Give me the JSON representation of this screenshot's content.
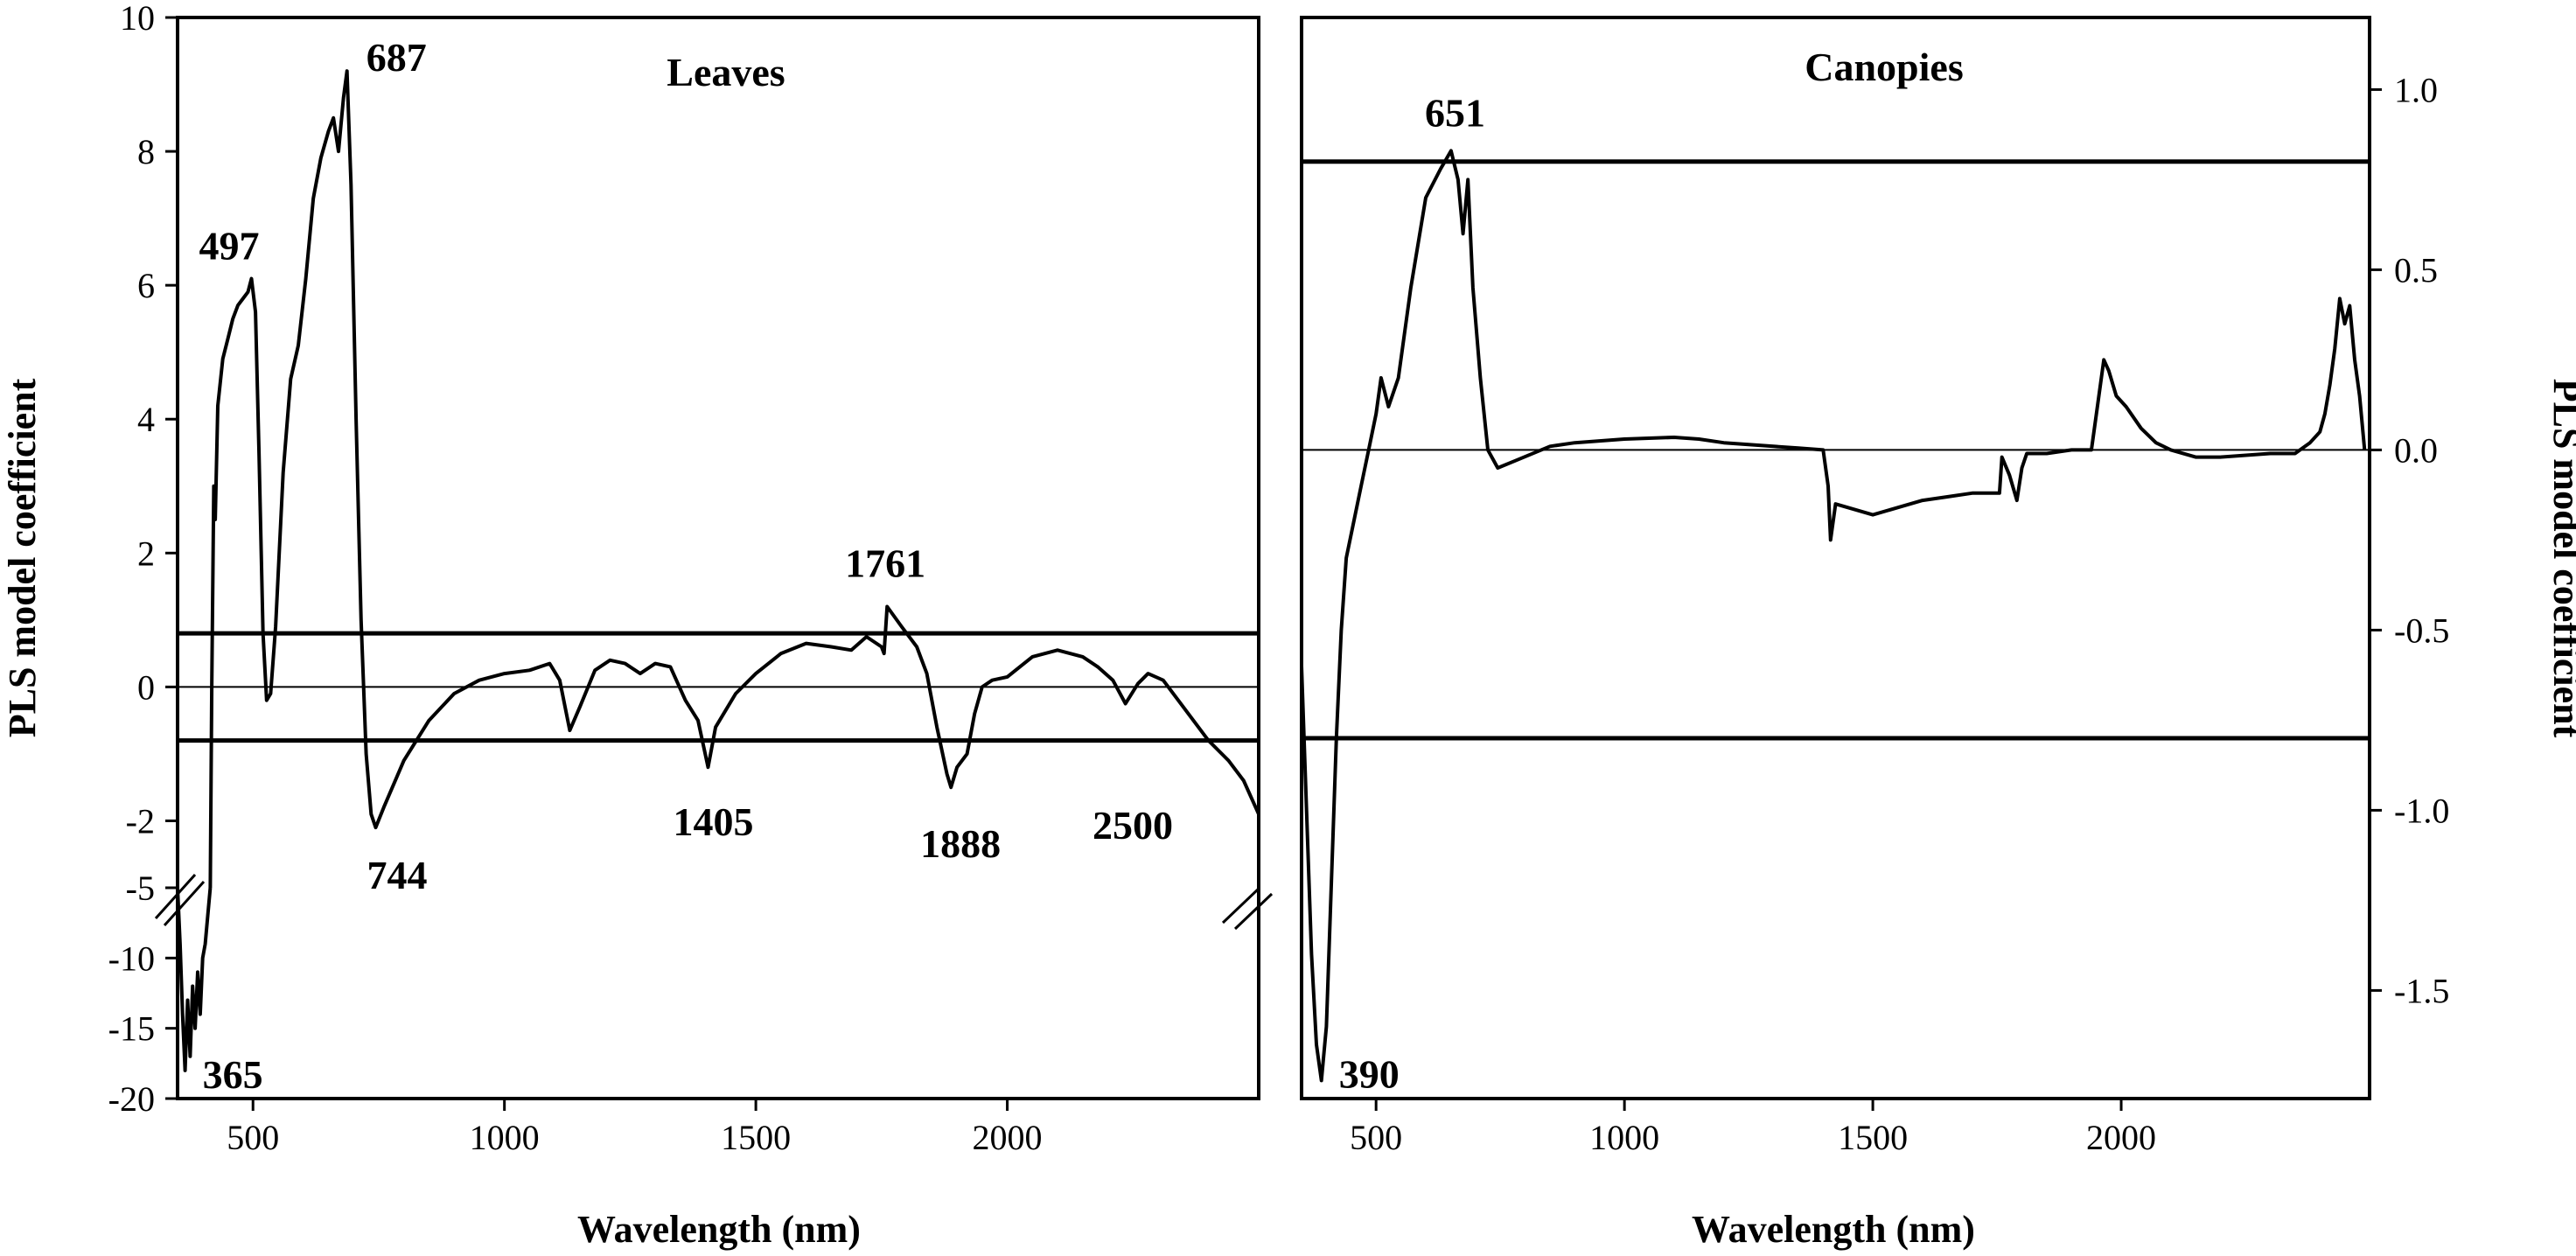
{
  "chart_data": [
    {
      "type": "line",
      "title": "Leaves",
      "xlabel": "Wavelength (nm)",
      "ylabel": "PLS model coefficient",
      "xlim": [
        350,
        2500
      ],
      "x_ticks": [
        "500",
        "1000",
        "1500",
        "2000"
      ],
      "y_ticks_upper": [
        "10",
        "8",
        "6",
        "4",
        "2",
        "0",
        "-2"
      ],
      "y_ticks_lower": [
        "-5",
        "-10",
        "-15",
        "-20"
      ],
      "ylim_upper": [
        -3,
        10
      ],
      "ylim_lower": [
        -20,
        -5
      ],
      "axis_break": "between -3 and -5",
      "threshold_lines": [
        0.8,
        -0.8
      ],
      "zero_line": 0,
      "peak_labels": [
        {
          "text": "687",
          "x": 687,
          "y": 9.2
        },
        {
          "text": "497",
          "x": 497,
          "y": 6.1
        },
        {
          "text": "1761",
          "x": 1761,
          "y": 1.2
        },
        {
          "text": "744",
          "x": 744,
          "y": -2.1
        },
        {
          "text": "1405",
          "x": 1405,
          "y": -1.2
        },
        {
          "text": "1888",
          "x": 1888,
          "y": -1.5
        },
        {
          "text": "2500",
          "x": 2500,
          "y": -1.9
        },
        {
          "text": "365",
          "x": 365,
          "y": -18
        }
      ],
      "series_lower": [
        [
          350,
          -5
        ],
        [
          355,
          -9
        ],
        [
          360,
          -14
        ],
        [
          365,
          -18
        ],
        [
          370,
          -13
        ],
        [
          375,
          -17
        ],
        [
          380,
          -12
        ],
        [
          385,
          -15
        ],
        [
          390,
          -11
        ],
        [
          395,
          -14
        ],
        [
          400,
          -10
        ],
        [
          405,
          -9
        ],
        [
          410,
          -7
        ],
        [
          415,
          -5
        ]
      ],
      "series_upper": [
        [
          415,
          -3
        ],
        [
          418,
          0
        ],
        [
          422,
          3
        ],
        [
          425,
          2.5
        ],
        [
          430,
          4.2
        ],
        [
          440,
          4.9
        ],
        [
          450,
          5.2
        ],
        [
          460,
          5.5
        ],
        [
          470,
          5.7
        ],
        [
          480,
          5.8
        ],
        [
          490,
          5.9
        ],
        [
          497,
          6.1
        ],
        [
          505,
          5.6
        ],
        [
          512,
          3.5
        ],
        [
          520,
          0.8
        ],
        [
          527,
          -0.2
        ],
        [
          535,
          -0.1
        ],
        [
          545,
          0.9
        ],
        [
          560,
          3.2
        ],
        [
          575,
          4.6
        ],
        [
          590,
          5.1
        ],
        [
          605,
          6.1
        ],
        [
          620,
          7.3
        ],
        [
          635,
          7.9
        ],
        [
          650,
          8.3
        ],
        [
          660,
          8.5
        ],
        [
          670,
          8.0
        ],
        [
          680,
          8.8
        ],
        [
          687,
          9.2
        ],
        [
          695,
          7.5
        ],
        [
          705,
          4.0
        ],
        [
          715,
          1.0
        ],
        [
          725,
          -1.0
        ],
        [
          735,
          -1.9
        ],
        [
          744,
          -2.1
        ],
        [
          760,
          -1.8
        ],
        [
          800,
          -1.1
        ],
        [
          850,
          -0.5
        ],
        [
          900,
          -0.1
        ],
        [
          950,
          0.1
        ],
        [
          1000,
          0.2
        ],
        [
          1050,
          0.25
        ],
        [
          1090,
          0.35
        ],
        [
          1110,
          0.1
        ],
        [
          1130,
          -0.65
        ],
        [
          1150,
          -0.3
        ],
        [
          1180,
          0.25
        ],
        [
          1210,
          0.4
        ],
        [
          1240,
          0.35
        ],
        [
          1270,
          0.2
        ],
        [
          1300,
          0.35
        ],
        [
          1330,
          0.3
        ],
        [
          1360,
          -0.2
        ],
        [
          1385,
          -0.5
        ],
        [
          1405,
          -1.2
        ],
        [
          1420,
          -0.6
        ],
        [
          1460,
          -0.1
        ],
        [
          1500,
          0.2
        ],
        [
          1550,
          0.5
        ],
        [
          1600,
          0.65
        ],
        [
          1650,
          0.6
        ],
        [
          1690,
          0.55
        ],
        [
          1720,
          0.75
        ],
        [
          1750,
          0.6
        ],
        [
          1755,
          0.5
        ],
        [
          1761,
          1.2
        ],
        [
          1790,
          0.9
        ],
        [
          1820,
          0.6
        ],
        [
          1840,
          0.2
        ],
        [
          1860,
          -0.6
        ],
        [
          1880,
          -1.3
        ],
        [
          1888,
          -1.5
        ],
        [
          1900,
          -1.2
        ],
        [
          1920,
          -1.0
        ],
        [
          1935,
          -0.4
        ],
        [
          1950,
          0.0
        ],
        [
          1970,
          0.1
        ],
        [
          2000,
          0.15
        ],
        [
          2050,
          0.45
        ],
        [
          2100,
          0.55
        ],
        [
          2150,
          0.45
        ],
        [
          2180,
          0.3
        ],
        [
          2210,
          0.1
        ],
        [
          2235,
          -0.25
        ],
        [
          2260,
          0.05
        ],
        [
          2280,
          0.2
        ],
        [
          2310,
          0.1
        ],
        [
          2350,
          -0.3
        ],
        [
          2400,
          -0.8
        ],
        [
          2440,
          -1.1
        ],
        [
          2470,
          -1.4
        ],
        [
          2500,
          -1.9
        ]
      ]
    },
    {
      "type": "line",
      "title": "Canopies",
      "xlabel": "Wavelength (nm)",
      "ylabel": "PLS model coefficient",
      "xlim": [
        350,
        2500
      ],
      "ylim": [
        -1.8,
        1.2
      ],
      "x_ticks": [
        "500",
        "1000",
        "1500",
        "2000"
      ],
      "y_ticks": [
        "1.0",
        "0.5",
        "0.0",
        "-0.5",
        "-1.0",
        "-1.5"
      ],
      "threshold_lines": [
        0.8,
        -0.8
      ],
      "zero_line": 0,
      "peak_labels": [
        {
          "text": "651",
          "x": 651,
          "y": 0.83
        },
        {
          "text": "390",
          "x": 390,
          "y": -1.75
        }
      ],
      "series": [
        [
          350,
          -0.6
        ],
        [
          360,
          -1.0
        ],
        [
          370,
          -1.4
        ],
        [
          380,
          -1.65
        ],
        [
          390,
          -1.75
        ],
        [
          400,
          -1.6
        ],
        [
          410,
          -1.2
        ],
        [
          420,
          -0.8
        ],
        [
          430,
          -0.5
        ],
        [
          440,
          -0.3
        ],
        [
          455,
          -0.2
        ],
        [
          470,
          -0.1
        ],
        [
          485,
          0.0
        ],
        [
          500,
          0.1
        ],
        [
          510,
          0.2
        ],
        [
          525,
          0.12
        ],
        [
          545,
          0.2
        ],
        [
          570,
          0.45
        ],
        [
          600,
          0.7
        ],
        [
          630,
          0.78
        ],
        [
          651,
          0.83
        ],
        [
          665,
          0.75
        ],
        [
          675,
          0.6
        ],
        [
          685,
          0.75
        ],
        [
          695,
          0.45
        ],
        [
          710,
          0.2
        ],
        [
          725,
          0.0
        ],
        [
          745,
          -0.05
        ],
        [
          780,
          -0.03
        ],
        [
          850,
          0.01
        ],
        [
          900,
          0.02
        ],
        [
          1000,
          0.03
        ],
        [
          1100,
          0.035
        ],
        [
          1150,
          0.03
        ],
        [
          1200,
          0.02
        ],
        [
          1250,
          0.015
        ],
        [
          1300,
          0.01
        ],
        [
          1350,
          0.005
        ],
        [
          1400,
          0.0
        ],
        [
          1410,
          -0.1
        ],
        [
          1415,
          -0.25
        ],
        [
          1425,
          -0.15
        ],
        [
          1450,
          -0.16
        ],
        [
          1500,
          -0.18
        ],
        [
          1550,
          -0.16
        ],
        [
          1600,
          -0.14
        ],
        [
          1650,
          -0.13
        ],
        [
          1700,
          -0.12
        ],
        [
          1755,
          -0.12
        ],
        [
          1760,
          -0.02
        ],
        [
          1775,
          -0.07
        ],
        [
          1790,
          -0.14
        ],
        [
          1800,
          -0.05
        ],
        [
          1810,
          -0.01
        ],
        [
          1850,
          -0.01
        ],
        [
          1900,
          0.0
        ],
        [
          1940,
          0.0
        ],
        [
          1950,
          0.1
        ],
        [
          1965,
          0.25
        ],
        [
          1975,
          0.22
        ],
        [
          1990,
          0.15
        ],
        [
          2010,
          0.12
        ],
        [
          2040,
          0.06
        ],
        [
          2070,
          0.02
        ],
        [
          2100,
          0.0
        ],
        [
          2150,
          -0.02
        ],
        [
          2200,
          -0.02
        ],
        [
          2300,
          -0.01
        ],
        [
          2350,
          -0.01
        ],
        [
          2380,
          0.02
        ],
        [
          2400,
          0.05
        ],
        [
          2410,
          0.1
        ],
        [
          2420,
          0.18
        ],
        [
          2430,
          0.28
        ],
        [
          2440,
          0.42
        ],
        [
          2450,
          0.35
        ],
        [
          2460,
          0.4
        ],
        [
          2470,
          0.25
        ],
        [
          2480,
          0.15
        ],
        [
          2490,
          0.0
        ]
      ]
    }
  ]
}
